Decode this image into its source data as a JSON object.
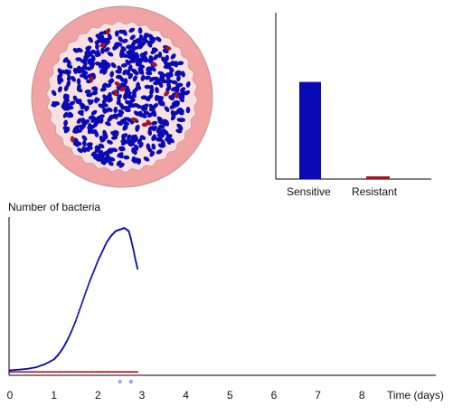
{
  "colors": {
    "sensitive": "#0a0ab4",
    "resistant": "#a01426",
    "dish_rim": "#f2a3a3",
    "dish_inner": "#f8e1e1",
    "dish_rim_stroke": "#b8989d",
    "axis": "#000000",
    "time_marker": "#9aa6ee"
  },
  "dish": {
    "sensitive_count": 520,
    "resistant_count": 14
  },
  "bar_chart": {
    "chart_data": {
      "type": "bar",
      "categories": [
        "Sensitive",
        "Resistant"
      ],
      "values": [
        0.59,
        0.015
      ],
      "ylim": [
        0,
        1
      ]
    }
  },
  "growth_chart": {
    "ylabel": "Number of bacteria",
    "xlabel": "Time (days)",
    "chart_data": {
      "type": "scatter",
      "xlim": [
        0,
        9.7
      ],
      "ylim": [
        0,
        1
      ],
      "x_ticks": [
        "0",
        "1",
        "2",
        "3",
        "4",
        "5",
        "6",
        "7",
        "8"
      ],
      "series": [
        {
          "points": [
            [
              0.0,
              0.02
            ],
            [
              0.2,
              0.025
            ],
            [
              0.4,
              0.03
            ],
            [
              0.6,
              0.04
            ],
            [
              0.8,
              0.06
            ],
            [
              1.0,
              0.09
            ],
            [
              1.1,
              0.12
            ],
            [
              1.2,
              0.16
            ],
            [
              1.3,
              0.21
            ],
            [
              1.4,
              0.27
            ],
            [
              1.5,
              0.34
            ],
            [
              1.6,
              0.42
            ],
            [
              1.7,
              0.5
            ],
            [
              1.8,
              0.58
            ],
            [
              1.9,
              0.65
            ],
            [
              2.0,
              0.72
            ],
            [
              2.1,
              0.78
            ],
            [
              2.2,
              0.84
            ],
            [
              2.3,
              0.88
            ],
            [
              2.4,
              0.91
            ],
            [
              2.5,
              0.92
            ],
            [
              2.6,
              0.93
            ],
            [
              2.7,
              0.91
            ],
            [
              2.75,
              0.86
            ],
            [
              2.8,
              0.8
            ],
            [
              2.85,
              0.73
            ],
            [
              2.9,
              0.67
            ]
          ]
        },
        {
          "points": [
            [
              0.0,
              0.01
            ],
            [
              1.0,
              0.01
            ],
            [
              2.0,
              0.01
            ],
            [
              2.9,
              0.01
            ]
          ]
        }
      ],
      "time_markers": [
        2.5,
        2.75
      ]
    }
  }
}
